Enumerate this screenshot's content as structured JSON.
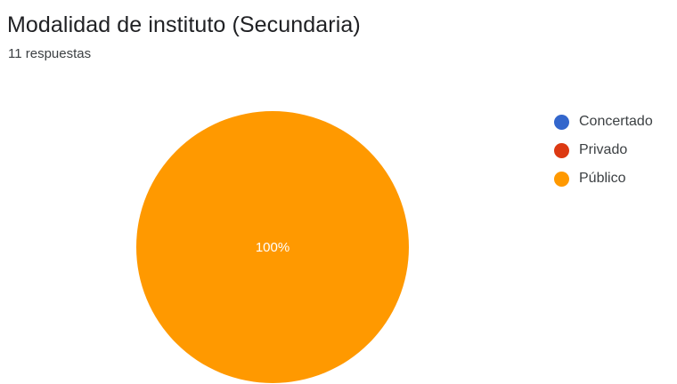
{
  "header": {
    "title": "Modalidad de instituto (Secundaria)",
    "responses": "11 respuestas"
  },
  "chart_data": {
    "type": "pie",
    "categories": [
      "Concertado",
      "Privado",
      "Público"
    ],
    "values": [
      0,
      0,
      11
    ],
    "colors": [
      "#3366cc",
      "#dc3912",
      "#ff9900"
    ],
    "slice_labels": [
      "",
      "",
      "100%"
    ],
    "legend": "right",
    "title": "Modalidad de instituto (Secundaria)",
    "subtitle": "11 respuestas"
  }
}
